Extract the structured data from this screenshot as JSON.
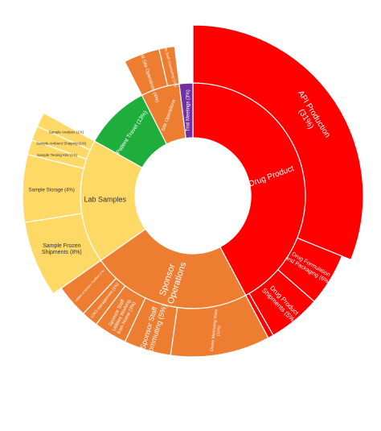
{
  "chart_data": {
    "type": "sunburst",
    "title": "",
    "colors": {
      "drug_product": "#ff0000",
      "sponsor_operations": "#ed7d31",
      "lab_samples": "#ffd966",
      "patient_travel": "#1fad3c",
      "trial_meetings": "#7030a0",
      "label_light": "#ffffff",
      "label_dark": "#333333"
    },
    "inner": [
      {
        "id": "drug-product",
        "label": "Drug Product",
        "color": "drug_product",
        "text": "label_light"
      },
      {
        "id": "sponsor-operations",
        "label": "Sponsor Operations",
        "color": "sponsor_operations",
        "text": "label_light"
      },
      {
        "id": "lab-samples",
        "label": "Lab Samples",
        "color": "lab_samples",
        "text": "label_dark"
      },
      {
        "id": "patient-travel",
        "label": "Patient Travel (13%)",
        "color": "patient_travel",
        "text": "label_light"
      },
      {
        "id": "site-operations",
        "label": "Site Operations",
        "color": "sponsor_operations",
        "text": "label_light"
      },
      {
        "id": "trial-meetings",
        "label": "Trial Meetings (3%)",
        "color": "trial_meetings",
        "text": "label_light"
      }
    ],
    "outer": [
      {
        "id": "api-production",
        "parent": "Drug Product",
        "label": "API Production (31%)",
        "value": 31,
        "color": "drug_product",
        "text": "label_light"
      },
      {
        "id": "drug-formulation",
        "parent": "Drug Product",
        "label": "Drug Formulation and Packaging (6%)",
        "value": 6,
        "color": "drug_product",
        "text": "label_light"
      },
      {
        "id": "drug-product-shipments",
        "parent": "Drug Product",
        "label": "Drug Product Shipments (5%)",
        "value": 5,
        "color": "drug_product",
        "text": "label_light"
      },
      {
        "id": "drug-product-small",
        "parent": "Drug Product",
        "label": "",
        "value": 0.6,
        "color": "drug_product",
        "text": "label_light"
      },
      {
        "id": "onsite-monitoring-visits",
        "parent": "Sponsor Operations",
        "label": "Onsite Monitoring Visits (11%)",
        "value": 11,
        "color": "sponsor_operations",
        "text": "label_light"
      },
      {
        "id": "sponsor-staff-commuting",
        "parent": "Sponsor Operations",
        "label": "Sponsor Staff Commuting (5%)",
        "value": 5,
        "color": "sponsor_operations",
        "text": "label_light"
      },
      {
        "id": "sponsor-staff-utilities",
        "parent": "Sponsor Operations",
        "label": "Sponsor Staff Utilities Working from Home (3%)",
        "value": 3,
        "color": "sponsor_operations",
        "text": "label_light"
      },
      {
        "id": "cro-management",
        "parent": "Sponsor Operations",
        "label": "CRO management (1%)",
        "value": 1.4,
        "color": "sponsor_operations",
        "text": "label_light"
      },
      {
        "id": "sponsor-facilities",
        "parent": "Sponsor Operations",
        "label": "Utilities at Sponsor Facilities (1%)",
        "value": 1.1,
        "color": "sponsor_operations",
        "text": "label_light"
      },
      {
        "id": "sample-frozen-shipments",
        "parent": "Lab Samples",
        "label": "Sample Frozen Shipments (8%)",
        "value": 8,
        "color": "lab_samples",
        "text": "label_dark"
      },
      {
        "id": "sample-storage",
        "parent": "Lab Samples",
        "label": "Sample Storage (4%)",
        "value": 4,
        "color": "lab_samples",
        "text": "label_dark"
      },
      {
        "id": "sample-testing-kits",
        "parent": "Lab Samples",
        "label": "Sample Testing Kits (1%)",
        "value": 1,
        "color": "lab_samples",
        "text": "label_dark"
      },
      {
        "id": "sample-ambient-shipping",
        "parent": "Lab Samples",
        "label": "Sample Ambient Shipping (1%)",
        "value": 0.9,
        "color": "lab_samples",
        "text": "label_dark"
      },
      {
        "id": "sample-analysis",
        "parent": "Lab Samples",
        "label": "Sample Analysis (1%)",
        "value": 0.9,
        "color": "lab_samples",
        "text": "label_dark"
      },
      {
        "id": "general-site-operations",
        "parent": "Site Operations",
        "label": "General Site Operations (4%)",
        "value": 4,
        "color": "sponsor_operations",
        "text": "label_light"
      },
      {
        "id": "site-staff-commuting",
        "parent": "Site Operations",
        "label": "Site Staff Commuting (1%)",
        "value": 1,
        "color": "sponsor_operations",
        "text": "label_light"
      }
    ]
  }
}
